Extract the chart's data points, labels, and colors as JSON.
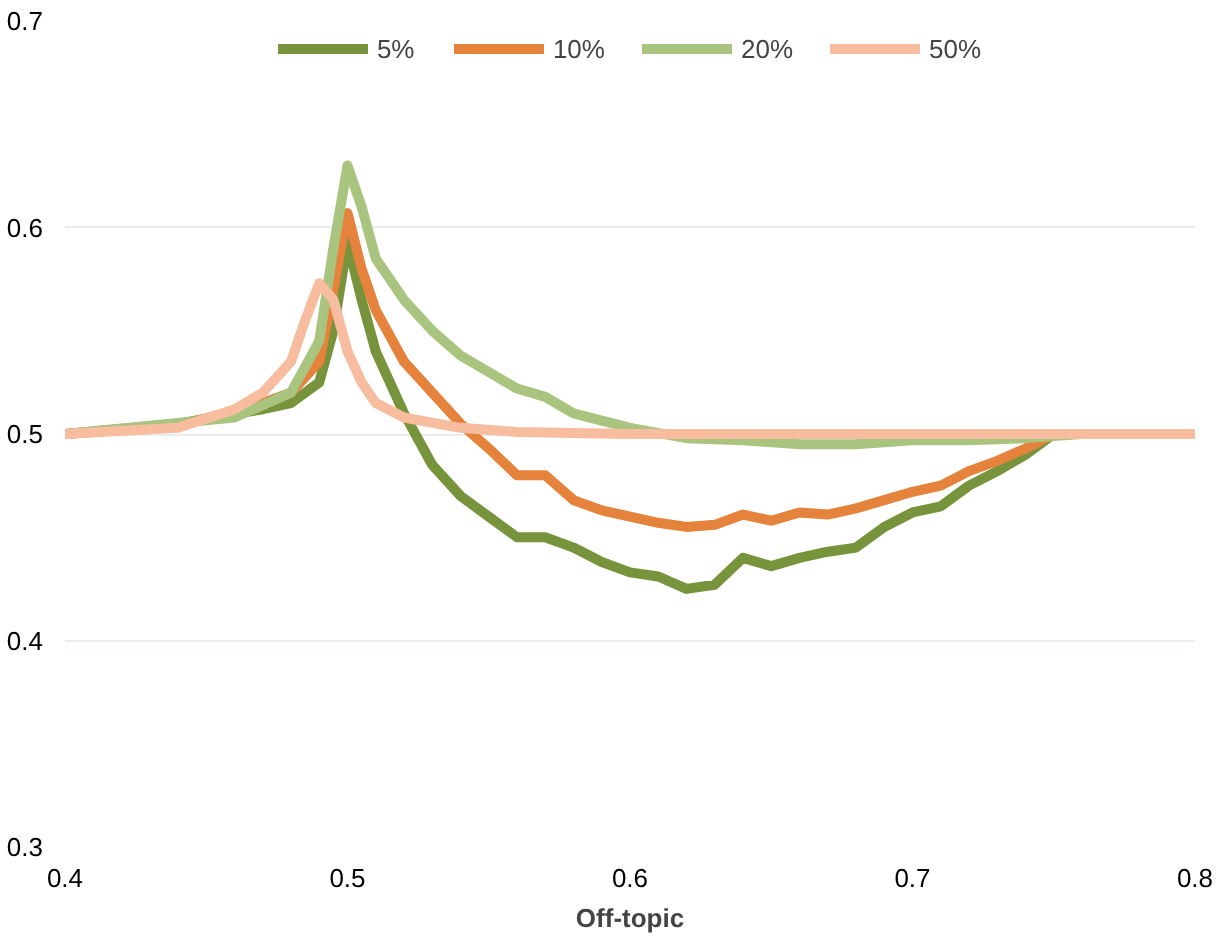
{
  "chart_data": {
    "type": "line",
    "xlabel": "Off-topic",
    "xlim": [
      0.4,
      0.8
    ],
    "ylim": [
      0.3,
      0.7
    ],
    "xticks": [
      0.4,
      0.5,
      0.6,
      0.7,
      0.8
    ],
    "yticks": [
      0.3,
      0.4,
      0.5,
      0.6,
      0.7
    ],
    "grid": "y",
    "legend": "top",
    "line_style": "solid",
    "marker": "none",
    "series": [
      {
        "name": "5%",
        "color": "#77933c",
        "x": [
          0.4,
          0.44,
          0.47,
          0.48,
          0.49,
          0.495,
          0.5,
          0.505,
          0.51,
          0.52,
          0.53,
          0.54,
          0.55,
          0.56,
          0.57,
          0.58,
          0.59,
          0.6,
          0.61,
          0.62,
          0.63,
          0.64,
          0.65,
          0.66,
          0.67,
          0.68,
          0.69,
          0.7,
          0.71,
          0.72,
          0.73,
          0.74,
          0.75
        ],
        "values": [
          0.5,
          0.505,
          0.512,
          0.515,
          0.525,
          0.55,
          0.593,
          0.565,
          0.54,
          0.51,
          0.485,
          0.47,
          0.46,
          0.45,
          0.45,
          0.445,
          0.438,
          0.433,
          0.431,
          0.425,
          0.427,
          0.44,
          0.436,
          0.44,
          0.443,
          0.445,
          0.455,
          0.462,
          0.465,
          0.475,
          0.482,
          0.49,
          0.5
        ]
      },
      {
        "name": "10%",
        "color": "#e5823b",
        "x": [
          0.4,
          0.44,
          0.47,
          0.48,
          0.49,
          0.495,
          0.5,
          0.505,
          0.51,
          0.52,
          0.53,
          0.54,
          0.55,
          0.56,
          0.57,
          0.58,
          0.59,
          0.6,
          0.61,
          0.62,
          0.63,
          0.64,
          0.65,
          0.66,
          0.67,
          0.68,
          0.69,
          0.7,
          0.71,
          0.72,
          0.73,
          0.74,
          0.75
        ],
        "values": [
          0.5,
          0.504,
          0.515,
          0.52,
          0.535,
          0.57,
          0.607,
          0.58,
          0.56,
          0.535,
          0.52,
          0.505,
          0.493,
          0.48,
          0.48,
          0.468,
          0.463,
          0.46,
          0.457,
          0.455,
          0.456,
          0.461,
          0.458,
          0.462,
          0.461,
          0.464,
          0.468,
          0.472,
          0.475,
          0.482,
          0.487,
          0.493,
          0.5
        ]
      },
      {
        "name": "20%",
        "color": "#a9c47f",
        "x": [
          0.4,
          0.46,
          0.48,
          0.49,
          0.495,
          0.5,
          0.505,
          0.51,
          0.52,
          0.53,
          0.54,
          0.55,
          0.56,
          0.57,
          0.58,
          0.6,
          0.62,
          0.64,
          0.66,
          0.68,
          0.7,
          0.72,
          0.74,
          0.76
        ],
        "values": [
          0.5,
          0.508,
          0.52,
          0.545,
          0.59,
          0.63,
          0.61,
          0.585,
          0.565,
          0.55,
          0.538,
          0.53,
          0.522,
          0.518,
          0.51,
          0.503,
          0.498,
          0.497,
          0.495,
          0.495,
          0.497,
          0.497,
          0.498,
          0.5
        ]
      },
      {
        "name": "50%",
        "color": "#f8bc9f",
        "x": [
          0.4,
          0.44,
          0.46,
          0.47,
          0.48,
          0.485,
          0.49,
          0.495,
          0.5,
          0.505,
          0.51,
          0.52,
          0.54,
          0.56,
          0.6,
          0.8
        ],
        "values": [
          0.5,
          0.503,
          0.512,
          0.52,
          0.535,
          0.555,
          0.573,
          0.565,
          0.54,
          0.525,
          0.515,
          0.508,
          0.503,
          0.501,
          0.5,
          0.5
        ]
      }
    ]
  }
}
